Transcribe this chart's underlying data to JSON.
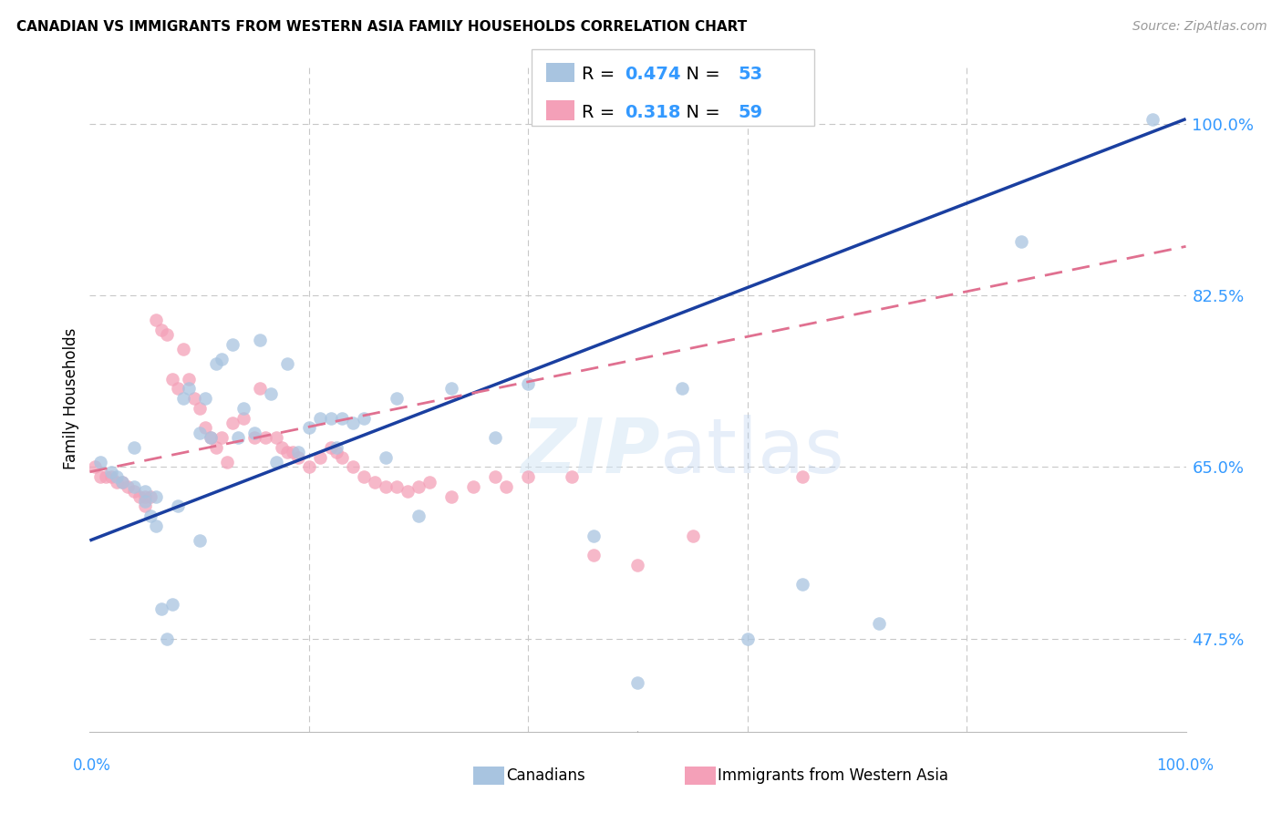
{
  "title": "CANADIAN VS IMMIGRANTS FROM WESTERN ASIA FAMILY HOUSEHOLDS CORRELATION CHART",
  "source": "Source: ZipAtlas.com",
  "ylabel": "Family Households",
  "background_color": "#ffffff",
  "grid_color": "#c8c8c8",
  "canadians_color": "#a8c4e0",
  "immigrants_color": "#f4a0b8",
  "canadian_line_color": "#1a3fa0",
  "immigrant_line_color": "#e07090",
  "R_canadian": 0.474,
  "N_canadian": 53,
  "R_immigrant": 0.318,
  "N_immigrant": 59,
  "ytick_label_positions": [
    0.475,
    0.65,
    0.825,
    1.0
  ],
  "ytick_labels_shown": [
    "47.5%",
    "65.0%",
    "82.5%",
    "100.0%"
  ],
  "xlim": [
    0.0,
    1.0
  ],
  "ylim": [
    0.38,
    1.06
  ],
  "can_line_x0": 0.0,
  "can_line_y0": 0.575,
  "can_line_x1": 1.0,
  "can_line_y1": 1.005,
  "imm_line_x0": 0.0,
  "imm_line_y0": 0.645,
  "imm_line_x1": 1.0,
  "imm_line_y1": 0.875,
  "canadians_x": [
    0.01,
    0.02,
    0.025,
    0.03,
    0.04,
    0.04,
    0.05,
    0.05,
    0.055,
    0.06,
    0.06,
    0.065,
    0.07,
    0.075,
    0.08,
    0.085,
    0.09,
    0.1,
    0.1,
    0.105,
    0.11,
    0.115,
    0.12,
    0.13,
    0.135,
    0.14,
    0.15,
    0.155,
    0.165,
    0.17,
    0.18,
    0.19,
    0.2,
    0.21,
    0.22,
    0.225,
    0.23,
    0.24,
    0.25,
    0.27,
    0.28,
    0.3,
    0.33,
    0.37,
    0.4,
    0.46,
    0.5,
    0.54,
    0.6,
    0.65,
    0.72,
    0.85,
    0.97
  ],
  "canadians_y": [
    0.655,
    0.645,
    0.64,
    0.635,
    0.63,
    0.67,
    0.625,
    0.615,
    0.6,
    0.62,
    0.59,
    0.505,
    0.475,
    0.51,
    0.61,
    0.72,
    0.73,
    0.575,
    0.685,
    0.72,
    0.68,
    0.755,
    0.76,
    0.775,
    0.68,
    0.71,
    0.685,
    0.78,
    0.725,
    0.655,
    0.755,
    0.665,
    0.69,
    0.7,
    0.7,
    0.67,
    0.7,
    0.695,
    0.7,
    0.66,
    0.72,
    0.6,
    0.73,
    0.68,
    0.735,
    0.58,
    0.43,
    0.73,
    0.475,
    0.53,
    0.49,
    0.88,
    1.005
  ],
  "immigrants_x": [
    0.005,
    0.01,
    0.015,
    0.02,
    0.025,
    0.03,
    0.035,
    0.04,
    0.045,
    0.05,
    0.05,
    0.055,
    0.06,
    0.065,
    0.07,
    0.075,
    0.08,
    0.085,
    0.09,
    0.095,
    0.1,
    0.105,
    0.11,
    0.115,
    0.12,
    0.125,
    0.13,
    0.14,
    0.15,
    0.155,
    0.16,
    0.17,
    0.175,
    0.18,
    0.185,
    0.19,
    0.2,
    0.21,
    0.22,
    0.225,
    0.23,
    0.24,
    0.25,
    0.26,
    0.27,
    0.28,
    0.29,
    0.3,
    0.31,
    0.33,
    0.35,
    0.37,
    0.38,
    0.4,
    0.44,
    0.46,
    0.5,
    0.55,
    0.65
  ],
  "immigrants_y": [
    0.65,
    0.64,
    0.64,
    0.64,
    0.635,
    0.635,
    0.63,
    0.625,
    0.62,
    0.61,
    0.62,
    0.62,
    0.8,
    0.79,
    0.785,
    0.74,
    0.73,
    0.77,
    0.74,
    0.72,
    0.71,
    0.69,
    0.68,
    0.67,
    0.68,
    0.655,
    0.695,
    0.7,
    0.68,
    0.73,
    0.68,
    0.68,
    0.67,
    0.665,
    0.665,
    0.66,
    0.65,
    0.66,
    0.67,
    0.665,
    0.66,
    0.65,
    0.64,
    0.635,
    0.63,
    0.63,
    0.625,
    0.63,
    0.635,
    0.62,
    0.63,
    0.64,
    0.63,
    0.64,
    0.64,
    0.56,
    0.55,
    0.58,
    0.64
  ]
}
